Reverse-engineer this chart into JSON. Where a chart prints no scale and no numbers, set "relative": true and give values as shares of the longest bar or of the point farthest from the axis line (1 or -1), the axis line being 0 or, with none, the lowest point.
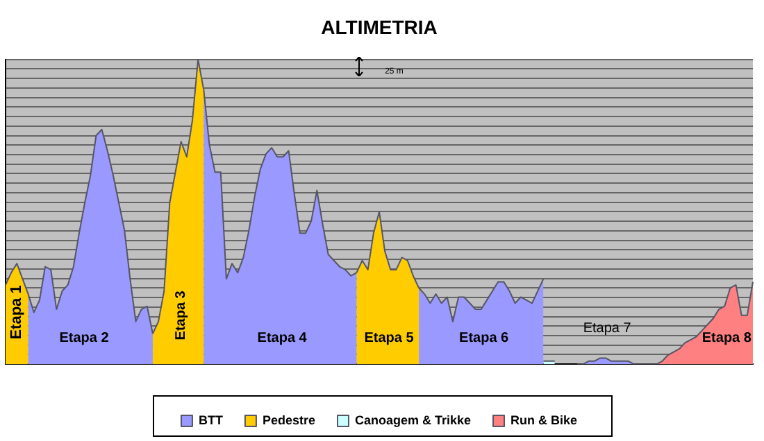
{
  "chart_data": {
    "type": "area",
    "title": "ALTIMETRIA",
    "relative": true,
    "grid": "y",
    "legend": "bottom",
    "marker": "none",
    "categories": [
      null,
      null,
      null,
      null,
      null,
      null,
      null,
      null,
      null,
      null,
      null,
      null,
      null,
      null,
      null,
      null,
      null,
      null,
      null,
      null,
      null,
      null,
      null,
      null,
      null,
      null,
      null,
      null,
      null,
      null,
      null,
      null,
      null,
      null,
      null,
      null,
      null,
      null,
      null,
      null,
      null,
      null,
      null,
      null,
      null,
      null,
      null,
      null,
      null,
      null,
      null,
      null,
      null,
      null,
      null,
      null,
      null,
      null,
      null,
      null,
      null,
      null,
      null,
      null,
      null,
      null,
      null,
      null,
      null,
      null,
      null,
      null,
      null,
      null,
      null,
      null,
      null,
      null,
      null,
      null,
      null,
      null,
      null,
      null,
      null,
      null,
      null,
      null,
      null,
      null,
      null,
      null,
      null,
      null,
      null,
      null,
      null,
      null,
      null,
      null,
      null,
      null,
      null,
      null,
      null,
      null,
      null,
      null,
      null,
      null,
      null,
      null,
      null,
      null,
      null,
      null,
      null,
      null,
      null,
      null,
      null,
      null,
      null,
      null,
      null,
      null,
      null,
      null,
      null,
      null,
      null,
      null,
      null
    ],
    "series": [
      {
        "name": "BTT",
        "color": "#9999ff",
        "values": [
          null,
          null,
          null,
          null,
          0.23,
          0.17,
          0.21,
          0.32,
          0.31,
          0.18,
          0.24,
          0.26,
          0.32,
          0.43,
          0.53,
          0.62,
          0.75,
          0.77,
          0.7,
          0.62,
          0.53,
          0.44,
          0.28,
          0.14,
          0.18,
          0.19,
          0.1,
          null,
          null,
          null,
          null,
          null,
          null,
          null,
          null,
          0.9,
          0.72,
          0.63,
          0.63,
          0.28,
          0.33,
          0.3,
          0.35,
          0.44,
          0.55,
          0.64,
          0.69,
          0.71,
          0.68,
          0.68,
          0.7,
          0.56,
          0.43,
          0.43,
          0.47,
          0.57,
          0.46,
          0.36,
          0.34,
          0.32,
          0.31,
          0.29,
          0.3,
          null,
          null,
          null,
          null,
          null,
          null,
          null,
          null,
          null,
          null,
          0.25,
          0.23,
          0.2,
          0.23,
          0.2,
          0.22,
          0.14,
          0.22,
          0.22,
          0.2,
          0.18,
          0.18,
          0.21,
          0.24,
          0.27,
          0.27,
          0.24,
          0.2,
          0.22,
          0.21,
          0.2,
          0.24,
          0.28,
          null,
          null,
          null,
          null,
          null,
          0,
          0,
          0.01,
          0.01,
          0.02,
          0.02,
          0.01,
          0.01,
          0.01,
          0.01,
          0,
          0,
          0,
          0,
          0,
          null,
          null,
          null,
          null,
          null,
          null,
          null,
          null,
          null,
          null,
          null,
          null,
          null,
          null,
          null,
          null,
          null
        ]
      },
      {
        "name": "Pedestre",
        "color": "#ffcc00",
        "values": [
          0.26,
          0.3,
          0.33,
          0.28,
          0.23,
          null,
          null,
          null,
          null,
          null,
          null,
          null,
          null,
          null,
          null,
          null,
          null,
          null,
          null,
          null,
          null,
          null,
          null,
          null,
          null,
          null,
          0.1,
          0.14,
          0.24,
          0.53,
          0.63,
          0.73,
          0.68,
          0.8,
          1,
          0.9,
          null,
          null,
          null,
          null,
          null,
          null,
          null,
          null,
          null,
          null,
          null,
          null,
          null,
          null,
          null,
          null,
          null,
          null,
          null,
          null,
          null,
          null,
          null,
          null,
          null,
          null,
          0.3,
          0.34,
          0.31,
          0.43,
          0.5,
          0.37,
          0.31,
          0.31,
          0.35,
          0.34,
          0.29,
          0.25,
          null,
          null,
          null,
          null,
          null,
          null,
          null,
          null,
          null,
          null,
          null,
          null,
          null,
          null,
          null,
          null,
          null,
          null,
          null,
          null,
          null,
          null,
          null,
          null,
          null,
          null,
          null,
          null,
          null,
          null,
          null,
          null,
          null,
          null,
          null,
          null,
          null,
          null,
          null,
          null,
          null,
          null,
          null,
          null,
          null,
          null,
          null,
          null,
          null,
          null,
          null,
          null,
          null,
          null,
          null,
          null,
          null,
          null,
          null
        ]
      },
      {
        "name": "Canoagem & Trikke",
        "color": "#ccffff",
        "values": [
          null,
          null,
          null,
          null,
          null,
          null,
          null,
          null,
          null,
          null,
          null,
          null,
          null,
          null,
          null,
          null,
          null,
          null,
          null,
          null,
          null,
          null,
          null,
          null,
          null,
          null,
          null,
          null,
          null,
          null,
          null,
          null,
          null,
          null,
          null,
          null,
          null,
          null,
          null,
          null,
          null,
          null,
          null,
          null,
          null,
          null,
          null,
          null,
          null,
          null,
          null,
          null,
          null,
          null,
          null,
          null,
          null,
          null,
          null,
          null,
          null,
          null,
          null,
          null,
          null,
          null,
          null,
          null,
          null,
          null,
          null,
          null,
          null,
          null,
          null,
          null,
          null,
          null,
          null,
          null,
          null,
          null,
          null,
          null,
          null,
          null,
          null,
          null,
          null,
          null,
          null,
          null,
          null,
          null,
          null,
          0.01,
          0.01,
          0.01,
          null,
          null,
          null,
          null,
          null,
          null,
          null,
          null,
          null,
          null,
          null,
          null,
          null,
          null,
          null,
          null,
          null,
          null,
          null,
          null,
          null,
          null,
          null,
          null,
          null,
          null,
          null,
          null,
          null,
          null,
          null,
          null,
          null,
          null,
          null
        ]
      },
      {
        "name": "Run & Bike",
        "color": "#ff8080",
        "values": [
          null,
          null,
          null,
          null,
          null,
          null,
          null,
          null,
          null,
          null,
          null,
          null,
          null,
          null,
          null,
          null,
          null,
          null,
          null,
          null,
          null,
          null,
          null,
          null,
          null,
          null,
          null,
          null,
          null,
          null,
          null,
          null,
          null,
          null,
          null,
          null,
          null,
          null,
          null,
          null,
          null,
          null,
          null,
          null,
          null,
          null,
          null,
          null,
          null,
          null,
          null,
          null,
          null,
          null,
          null,
          null,
          null,
          null,
          null,
          null,
          null,
          null,
          null,
          null,
          null,
          null,
          null,
          null,
          null,
          null,
          null,
          null,
          null,
          null,
          null,
          null,
          null,
          null,
          null,
          null,
          null,
          null,
          null,
          null,
          null,
          null,
          null,
          null,
          null,
          null,
          null,
          null,
          null,
          null,
          null,
          null,
          null,
          null,
          null,
          null,
          null,
          null,
          null,
          null,
          null,
          null,
          null,
          null,
          null,
          null,
          null,
          null,
          null,
          null,
          null,
          0,
          0.01,
          0.03,
          0.04,
          0.05,
          0.07,
          0.08,
          0.09,
          0.11,
          0.13,
          0.15,
          0.18,
          0.19,
          0.25,
          0.26,
          0.16,
          0.16,
          0.27
        ]
      }
    ],
    "annotations": [
      "Etapa 1",
      "Etapa 2",
      "Etapa 3",
      "Etapa 4",
      "Etapa 5",
      "Etapa 6",
      "Etapa 7",
      "Etapa 8",
      "25 m"
    ]
  }
}
